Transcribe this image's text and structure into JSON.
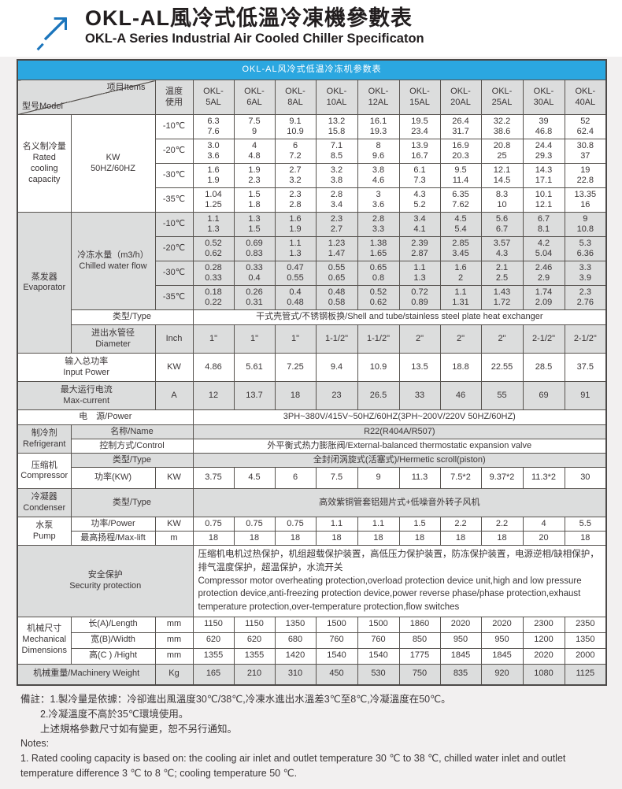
{
  "header": {
    "title_zh": "OKL-AL風冷式低溫冷凍機參數表",
    "title_en": "OKL-A Series Industrial Air Cooled Chiller Specificaton"
  },
  "table": {
    "title": "OKL-AL风冷式低温冷冻机参数表",
    "corner_model": "型号Model",
    "corner_items": "项目Items",
    "temp_header": "温度\n使用",
    "models": [
      "OKL-\n5AL",
      "OKL-\n6AL",
      "OKL-\n8AL",
      "OKL-\n10AL",
      "OKL-\n12AL",
      "OKL-\n15AL",
      "OKL-\n20AL",
      "OKL-\n25AL",
      "OKL-\n30AL",
      "OKL-\n40AL"
    ]
  },
  "rated": {
    "label": "名义制冷量\nRated\ncooling\ncapacity",
    "unit": "KW\n50HZ/60HZ",
    "rows": [
      {
        "temp": "-10℃",
        "values": [
          "6.3\n7.6",
          "7.5\n9",
          "9.1\n10.9",
          "13.2\n15.8",
          "16.1\n19.3",
          "19.5\n23.4",
          "26.4\n31.7",
          "32.2\n38.6",
          "39\n46.8",
          "52\n62.4"
        ]
      },
      {
        "temp": "-20℃",
        "values": [
          "3.0\n3.6",
          "4\n4.8",
          "6\n7.2",
          "7.1\n8.5",
          "8\n9.6",
          "13.9\n16.7",
          "16.9\n20.3",
          "20.8\n25",
          "24.4\n29.3",
          "30.8\n37"
        ]
      },
      {
        "temp": "-30℃",
        "values": [
          "1.6\n1.9",
          "1.9\n2.3",
          "2.7\n3.2",
          "3.2\n3.8",
          "3.8\n4.6",
          "6.1\n7.3",
          "9.5\n11.4",
          "12.1\n14.5",
          "14.3\n17.1",
          "19\n22.8"
        ]
      },
      {
        "temp": "-35℃",
        "values": [
          "1.04\n1.25",
          "1.5\n1.8",
          "2.3\n2.8",
          "2.8\n3.4",
          "3\n3.6",
          "4.3\n5.2",
          "6.35\n7.62",
          "8.3\n10",
          "10.1\n12.1",
          "13.35\n16"
        ]
      }
    ]
  },
  "evaporator": {
    "label": "蒸发器\nEvaporator",
    "flow_label": "冷冻水量（m3/h）\nChilled water flow",
    "rows": [
      {
        "temp": "-10℃",
        "values": [
          "1.1\n1.3",
          "1.3\n1.5",
          "1.6\n1.9",
          "2.3\n2.7",
          "2.8\n3.3",
          "3.4\n4.1",
          "4.5\n5.4",
          "5.6\n6.7",
          "6.7\n8.1",
          "9\n10.8"
        ]
      },
      {
        "temp": "-20℃",
        "values": [
          "0.52\n0.62",
          "0.69\n0.83",
          "1.1\n1.3",
          "1.23\n1.47",
          "1.38\n1.65",
          "2.39\n2.87",
          "2.85\n3.45",
          "3.57\n4.3",
          "4.2\n5.04",
          "5.3\n6.36"
        ]
      },
      {
        "temp": "-30℃",
        "values": [
          "0.28\n0.33",
          "0.33\n0.4",
          "0.47\n0.55",
          "0.55\n0.65",
          "0.65\n0.8",
          "1.1\n1.3",
          "1.6\n2",
          "2.1\n2.5",
          "2.46\n2.9",
          "3.3\n3.9"
        ]
      },
      {
        "temp": "-35℃",
        "values": [
          "0.18\n0.22",
          "0.26\n0.31",
          "0.4\n0.48",
          "0.48\n0.58",
          "0.52\n0.62",
          "0.72\n0.89",
          "1.1\n1.31",
          "1.43\n1.72",
          "1.74\n2.09",
          "2.3\n2.76"
        ]
      }
    ],
    "type_label": "类型/Type",
    "type_value": "干式壳管式/不锈钢板换/Shell and tube/stainless steel plate heat exchanger",
    "diameter_label": "进出水管径\nDiameter",
    "diameter_unit": "Inch",
    "diameter_values": [
      "1\"",
      "1\"",
      "1\"",
      "1-1/2\"",
      "1-1/2\"",
      "2\"",
      "2\"",
      "2\"",
      "2-1/2\"",
      "2-1/2\""
    ]
  },
  "input_power": {
    "label": "输入总功率\nInput Power",
    "unit": "KW",
    "values": [
      "4.86",
      "5.61",
      "7.25",
      "9.4",
      "10.9",
      "13.5",
      "18.8",
      "22.55",
      "28.5",
      "37.5"
    ]
  },
  "max_current": {
    "label": "最大运行电流\nMax-current",
    "unit": "A",
    "values": [
      "12",
      "13.7",
      "18",
      "23",
      "26.5",
      "33",
      "46",
      "55",
      "69",
      "91"
    ]
  },
  "power_supply": {
    "label": "电　源/Power",
    "value": "3PH~380V/415V~50HZ/60HZ(3PH~200V/220V  50HZ/60HZ)"
  },
  "refrigerant": {
    "label": "制冷剂\nRefrigerant",
    "name_label": "名称/Name",
    "name_value": "R22(R404A/R507)",
    "control_label": "控制方式/Control",
    "control_value": "外平衡式热力膨胀阀/External-balanced thermostatic expansion valve"
  },
  "compressor": {
    "label": "压缩机\nCompressor",
    "type_label": "类型/Type",
    "type_value": "全封闭涡旋式(活塞式)/Hermetic scroll(piston)",
    "power_label": "功率(KW)",
    "power_unit": "KW",
    "power_values": [
      "3.75",
      "4.5",
      "6",
      "7.5",
      "9",
      "11.3",
      "7.5*2",
      "9.37*2",
      "11.3*2",
      "30"
    ]
  },
  "condenser": {
    "label": "冷凝器\nCondenser",
    "type_label": "类型/Type",
    "type_value": "高效紫铜管套铝翅片式+低噪音外转子风机"
  },
  "pump": {
    "label": "水泵\nPump",
    "power_label": "功率/Power",
    "power_unit": "KW",
    "power_values": [
      "0.75",
      "0.75",
      "0.75",
      "1.1",
      "1.1",
      "1.5",
      "2.2",
      "2.2",
      "4",
      "5.5"
    ],
    "lift_label": "最高扬程/Max-lift",
    "lift_unit": "m",
    "lift_values": [
      "18",
      "18",
      "18",
      "18",
      "18",
      "18",
      "18",
      "18",
      "20",
      "18"
    ]
  },
  "security": {
    "label": "安全保护\nSecurity protection",
    "value": "压缩机电机过热保护，机组超载保护装置，高低压力保护装置，防冻保护装置，电源逆相/缺相保护，排气温度保护，超温保护，水流开关\n Compressor motor overheating protection,overload protection device unit,high and low pressure protection device,anti-freezing protection device,power reverse phase/phase protection,exhaust temperature protection,over-temperature protection,flow switches"
  },
  "dimensions": {
    "label": "机械尺寸\nMechanical\nDimensions",
    "rows": [
      {
        "label": "长(A)/Length",
        "unit": "mm",
        "values": [
          "1150",
          "1150",
          "1350",
          "1500",
          "1500",
          "1860",
          "2020",
          "2020",
          "2300",
          "2350"
        ]
      },
      {
        "label": "宽(B)/Width",
        "unit": "mm",
        "values": [
          "620",
          "620",
          "680",
          "760",
          "760",
          "850",
          "950",
          "950",
          "1200",
          "1350"
        ]
      },
      {
        "label": "高(C ) /Hight",
        "unit": "mm",
        "values": [
          "1355",
          "1355",
          "1420",
          "1540",
          "1540",
          "1775",
          "1845",
          "1845",
          "2020",
          "2000"
        ]
      }
    ]
  },
  "weight": {
    "label": "机械重量/Machinery Weight",
    "unit": "Kg",
    "values": [
      "165",
      "210",
      "310",
      "450",
      "530",
      "750",
      "835",
      "920",
      "1080",
      "1125"
    ]
  },
  "notes": {
    "lines": [
      "備註：1.製冷量是依據：冷卻進出風溫度30℃/38℃,冷凍水進出水溫差3℃至8℃,冷凝溫度在50℃。",
      "　　2.冷凝溫度不高於35℃環境使用。",
      "　　上述規格參數尺寸如有變更，恕不另行通知。",
      "Notes:",
      "1. Rated cooling capacity is based on: the cooling air inlet and outlet temperature 30 ℃ to 38 ℃, chilled water inlet and outlet temperature difference 3 ℃ to 8 ℃; cooling temperature 50 ℃."
    ]
  },
  "colors": {
    "accent_blue": "#2ba7e0",
    "logo_blue": "#1b75bc",
    "stripe_gray": "#dcdddd",
    "border": "#4c4948"
  }
}
